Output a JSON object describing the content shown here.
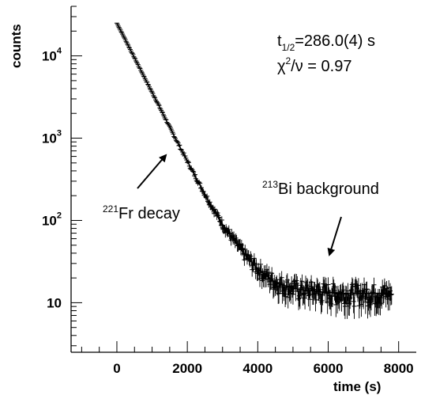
{
  "chart_data": {
    "type": "scatter",
    "title": "",
    "xlabel": "time (s)",
    "ylabel": "counts",
    "xlim": [
      -1300,
      8500
    ],
    "ylim": [
      2.5,
      40000
    ],
    "y_scale": "log",
    "grid": false,
    "x_ticks": [
      0,
      2000,
      4000,
      6000,
      8000
    ],
    "x_tick_labels": [
      "0",
      "2000",
      "4000",
      "6000",
      "8000"
    ],
    "y_ticks": [
      10,
      100,
      1000,
      10000
    ],
    "y_tick_labels": [
      {
        "base": "10",
        "exp": ""
      },
      {
        "base": "10",
        "exp": "2"
      },
      {
        "base": "10",
        "exp": "3"
      },
      {
        "base": "10",
        "exp": "4"
      }
    ],
    "fit": {
      "half_life_text": {
        "prefix": "t",
        "sub": "1/2",
        "value": "=286.0(4) s"
      },
      "chi2_text": {
        "prefix": "χ",
        "sup": "2",
        "value": "/ν = 0.97"
      },
      "background_level": 13
    },
    "annotations": [
      {
        "iso": "221",
        "text": "Fr decay",
        "x": 1250,
        "y": 500,
        "arrow_to": [
          1350,
          800
        ]
      },
      {
        "iso": "213",
        "text": "Bi background",
        "x": 5000,
        "y": 175,
        "arrow_to": [
          6050,
          30
        ]
      }
    ],
    "series": [
      {
        "x": [
          0,
          200,
          400,
          600,
          800,
          1000,
          1200,
          1400,
          1600,
          1800,
          2000,
          2200,
          2400,
          2600,
          2800,
          3000,
          3200,
          3400,
          3600,
          3800,
          4000,
          4200,
          4400,
          4600,
          4800,
          5000,
          5200,
          5400,
          5600,
          5800,
          6000,
          6200,
          6400,
          6600,
          6800,
          7000,
          7200,
          7400,
          7600,
          7800
        ],
        "y": [
          25000,
          17000,
          11500,
          7800,
          5300,
          3600,
          2450,
          1650,
          1120,
          765,
          525,
          360,
          250,
          175,
          125,
          90,
          68,
          52,
          40,
          32,
          26,
          22,
          19,
          17,
          16,
          15,
          14.5,
          14,
          14,
          13.5,
          13.5,
          13,
          13,
          13,
          13,
          13,
          13,
          13,
          13,
          13
        ]
      }
    ]
  }
}
